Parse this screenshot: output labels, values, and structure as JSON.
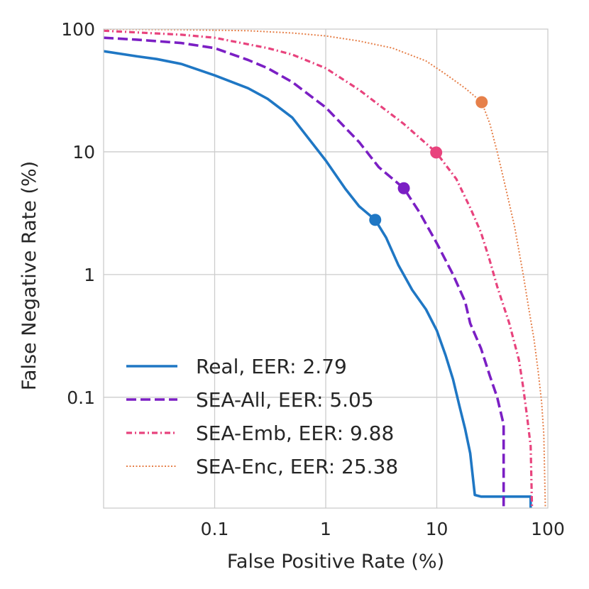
{
  "chart_data": {
    "type": "line",
    "title": "",
    "xlabel": "False Positive Rate (%)",
    "ylabel": "False Negative Rate (%)",
    "xscale": "log",
    "yscale": "log",
    "xlim": [
      0.01,
      100
    ],
    "ylim": [
      0.0125,
      100
    ],
    "grid": true,
    "legend_position": "bottom-left",
    "xticks": [
      {
        "value": 0.1,
        "label": "0.1"
      },
      {
        "value": 1,
        "label": "1"
      },
      {
        "value": 10,
        "label": "10"
      },
      {
        "value": 100,
        "label": "100"
      }
    ],
    "yticks": [
      {
        "value": 0.1,
        "label": "0.1"
      },
      {
        "value": 1,
        "label": "1"
      },
      {
        "value": 10,
        "label": "10"
      },
      {
        "value": 100,
        "label": "100"
      }
    ],
    "series": [
      {
        "name": "Real",
        "legend_label": "Real, EER: 2.79",
        "color": "#1f77c4",
        "style": "solid",
        "eer": 2.79,
        "points": [
          [
            0.01,
            66
          ],
          [
            0.02,
            60
          ],
          [
            0.03,
            57
          ],
          [
            0.05,
            52
          ],
          [
            0.1,
            42
          ],
          [
            0.2,
            33
          ],
          [
            0.3,
            27
          ],
          [
            0.5,
            19
          ],
          [
            1,
            8.5
          ],
          [
            1.5,
            5
          ],
          [
            2,
            3.6
          ],
          [
            2.79,
            2.79
          ],
          [
            3.5,
            2.0
          ],
          [
            4.5,
            1.2
          ],
          [
            6,
            0.75
          ],
          [
            8,
            0.52
          ],
          [
            10,
            0.35
          ],
          [
            12,
            0.22
          ],
          [
            14,
            0.14
          ],
          [
            16,
            0.085
          ],
          [
            18,
            0.055
          ],
          [
            20,
            0.035
          ],
          [
            22,
            0.016
          ],
          [
            25,
            0.0155
          ],
          [
            70,
            0.0155
          ],
          [
            70,
            0.0125
          ]
        ]
      },
      {
        "name": "SEA-All",
        "legend_label": "SEA-All, EER: 5.05",
        "color": "#7b1fc4",
        "style": "dashed",
        "eer": 5.05,
        "points": [
          [
            0.01,
            85
          ],
          [
            0.02,
            82
          ],
          [
            0.05,
            77
          ],
          [
            0.1,
            70
          ],
          [
            0.2,
            56
          ],
          [
            0.3,
            48
          ],
          [
            0.5,
            37
          ],
          [
            1,
            23
          ],
          [
            2,
            12
          ],
          [
            3,
            7.5
          ],
          [
            5.05,
            5.05
          ],
          [
            7,
            3.2
          ],
          [
            10,
            1.8
          ],
          [
            14,
            1.0
          ],
          [
            18,
            0.6
          ],
          [
            20,
            0.4
          ],
          [
            25,
            0.25
          ],
          [
            30,
            0.15
          ],
          [
            35,
            0.1
          ],
          [
            40,
            0.06
          ],
          [
            40,
            0.0125
          ]
        ]
      },
      {
        "name": "SEA-Emb",
        "legend_label": "SEA-Emb, EER: 9.88",
        "color": "#e8437d",
        "style": "dashdot",
        "eer": 9.88,
        "points": [
          [
            0.01,
            97
          ],
          [
            0.05,
            90
          ],
          [
            0.1,
            85
          ],
          [
            0.3,
            70
          ],
          [
            0.5,
            62
          ],
          [
            1,
            48
          ],
          [
            2,
            32
          ],
          [
            5,
            17
          ],
          [
            9.88,
            9.88
          ],
          [
            15,
            6
          ],
          [
            20,
            3.5
          ],
          [
            25,
            2.2
          ],
          [
            30,
            1.3
          ],
          [
            35,
            0.8
          ],
          [
            45,
            0.4
          ],
          [
            55,
            0.2
          ],
          [
            60,
            0.12
          ],
          [
            65,
            0.07
          ],
          [
            70,
            0.04
          ],
          [
            72,
            0.0125
          ]
        ]
      },
      {
        "name": "SEA-Enc",
        "legend_label": "SEA-Enc, EER: 25.38",
        "color": "#e6804a",
        "style": "dotted",
        "eer": 25.38,
        "points": [
          [
            0.01,
            100
          ],
          [
            0.05,
            99
          ],
          [
            0.2,
            97
          ],
          [
            0.5,
            93
          ],
          [
            1,
            88
          ],
          [
            2,
            80
          ],
          [
            4,
            70
          ],
          [
            8,
            55
          ],
          [
            12,
            43
          ],
          [
            18,
            33
          ],
          [
            25.38,
            25.38
          ],
          [
            30,
            17
          ],
          [
            35,
            10
          ],
          [
            40,
            6
          ],
          [
            50,
            2.5
          ],
          [
            60,
            1.0
          ],
          [
            68,
            0.5
          ],
          [
            75,
            0.3
          ],
          [
            82,
            0.16
          ],
          [
            88,
            0.09
          ],
          [
            92,
            0.05
          ],
          [
            95,
            0.0125
          ]
        ]
      }
    ]
  }
}
